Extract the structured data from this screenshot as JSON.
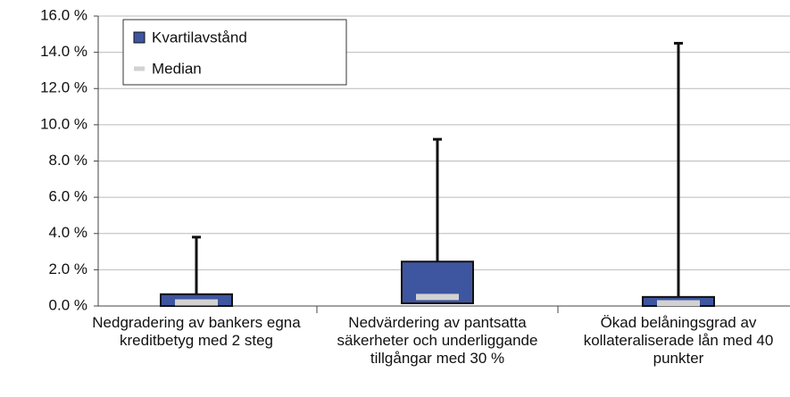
{
  "chart_data": {
    "type": "box",
    "categories": [
      "Nedgradering av bankers egna kreditbetyg med 2 steg",
      "Nedvärdering av pantsatta säkerheter och underliggande tillgångar med 30 %",
      "Ökad belåningsgrad av kollateraliserade lån med 40 punkter"
    ],
    "series": [
      {
        "name": "Kvartilavstånd",
        "color": "#3e55a0",
        "q1": [
          0,
          0.15,
          0
        ],
        "q3": [
          0.65,
          2.45,
          0.5
        ],
        "max": [
          3.8,
          9.2,
          14.5
        ]
      },
      {
        "name": "Median",
        "color": "#d2d2d2",
        "values": [
          0.2,
          0.5,
          0.15
        ]
      }
    ],
    "ylim": [
      0,
      16
    ],
    "yticks": [
      {
        "value": 0,
        "label": "0.0 %"
      },
      {
        "value": 2,
        "label": "2.0 %"
      },
      {
        "value": 4,
        "label": "4.0 %"
      },
      {
        "value": 6,
        "label": "6.0 %"
      },
      {
        "value": 8,
        "label": "8.0 %"
      },
      {
        "value": 10,
        "label": "10.0 %"
      },
      {
        "value": 12,
        "label": "12.0 %"
      },
      {
        "value": 14,
        "label": "14.0 %"
      },
      {
        "value": 16,
        "label": "16.0 %"
      }
    ],
    "grid": true,
    "legend": "top-left"
  }
}
